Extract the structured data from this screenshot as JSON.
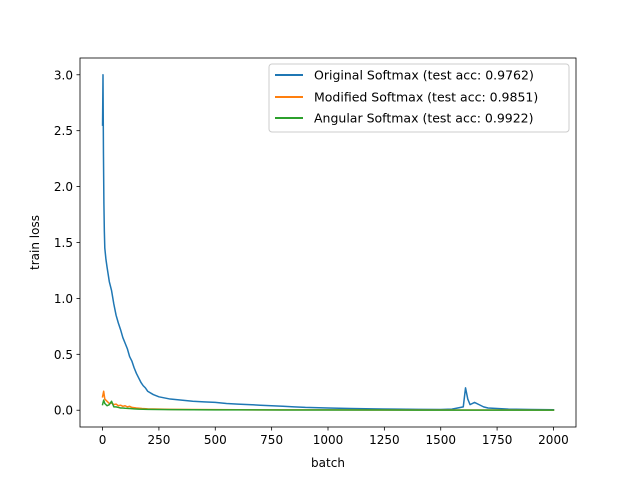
{
  "chart_data": {
    "type": "line",
    "xlabel": "batch",
    "ylabel": "train loss",
    "xlim": [
      -100,
      2100
    ],
    "ylim": [
      -0.15,
      3.15
    ],
    "xticks": [
      0,
      250,
      500,
      750,
      1000,
      1250,
      1500,
      1750,
      2000
    ],
    "xtick_labels": [
      "0",
      "250",
      "500",
      "750",
      "1000",
      "1250",
      "1500",
      "1750",
      "2000"
    ],
    "yticks": [
      0.0,
      0.5,
      1.0,
      1.5,
      2.0,
      2.5,
      3.0
    ],
    "ytick_labels": [
      "0.0",
      "0.5",
      "1.0",
      "1.5",
      "2.0",
      "2.5",
      "3.0"
    ],
    "grid": false,
    "legend_position": "top-right",
    "series": [
      {
        "name": "Original Softmax (test acc: 0.9762)",
        "color": "#1f77b4",
        "x": [
          0,
          2,
          4,
          6,
          8,
          10,
          15,
          20,
          30,
          40,
          50,
          60,
          70,
          80,
          90,
          100,
          110,
          120,
          130,
          140,
          150,
          160,
          170,
          180,
          190,
          200,
          225,
          250,
          275,
          300,
          350,
          400,
          450,
          500,
          550,
          600,
          650,
          700,
          750,
          800,
          850,
          900,
          1000,
          1100,
          1200,
          1300,
          1400,
          1500,
          1550,
          1600,
          1610,
          1620,
          1630,
          1650,
          1670,
          1690,
          1710,
          1750,
          1800,
          1900,
          2000
        ],
        "y": [
          2.55,
          3.0,
          2.3,
          1.85,
          1.6,
          1.45,
          1.35,
          1.28,
          1.15,
          1.07,
          0.95,
          0.85,
          0.78,
          0.72,
          0.65,
          0.6,
          0.55,
          0.48,
          0.44,
          0.38,
          0.33,
          0.29,
          0.25,
          0.22,
          0.2,
          0.17,
          0.14,
          0.12,
          0.11,
          0.1,
          0.09,
          0.08,
          0.075,
          0.07,
          0.06,
          0.055,
          0.05,
          0.045,
          0.04,
          0.035,
          0.03,
          0.025,
          0.02,
          0.015,
          0.012,
          0.01,
          0.008,
          0.006,
          0.01,
          0.03,
          0.2,
          0.1,
          0.05,
          0.07,
          0.05,
          0.03,
          0.02,
          0.015,
          0.01,
          0.006,
          0.004
        ]
      },
      {
        "name": "Modified Softmax (test acc: 0.9851)",
        "color": "#ff7f0e",
        "x": [
          0,
          5,
          10,
          20,
          30,
          40,
          50,
          60,
          70,
          80,
          90,
          100,
          110,
          120,
          130,
          150,
          175,
          200,
          250,
          300,
          400,
          500,
          600,
          800,
          1000,
          1200,
          1400,
          1600,
          1800,
          2000
        ],
        "y": [
          0.12,
          0.17,
          0.1,
          0.08,
          0.06,
          0.065,
          0.05,
          0.055,
          0.04,
          0.045,
          0.035,
          0.04,
          0.03,
          0.035,
          0.025,
          0.02,
          0.015,
          0.012,
          0.01,
          0.008,
          0.006,
          0.005,
          0.004,
          0.003,
          0.003,
          0.002,
          0.002,
          0.002,
          0.002,
          0.001
        ]
      },
      {
        "name": "Angular  Softmax (test acc: 0.9922)",
        "color": "#2ca02c",
        "x": [
          0,
          5,
          10,
          15,
          20,
          30,
          40,
          50,
          60,
          70,
          80,
          90,
          100,
          120,
          140,
          160,
          180,
          200,
          250,
          300,
          400,
          500,
          600,
          800,
          1000,
          1200,
          1400,
          1600,
          1800,
          2000
        ],
        "y": [
          0.05,
          0.09,
          0.06,
          0.05,
          0.04,
          0.05,
          0.08,
          0.03,
          0.03,
          0.025,
          0.02,
          0.02,
          0.018,
          0.015,
          0.012,
          0.01,
          0.009,
          0.008,
          0.006,
          0.005,
          0.004,
          0.003,
          0.003,
          0.002,
          0.002,
          0.002,
          0.001,
          0.001,
          0.001,
          0.001
        ]
      }
    ]
  }
}
